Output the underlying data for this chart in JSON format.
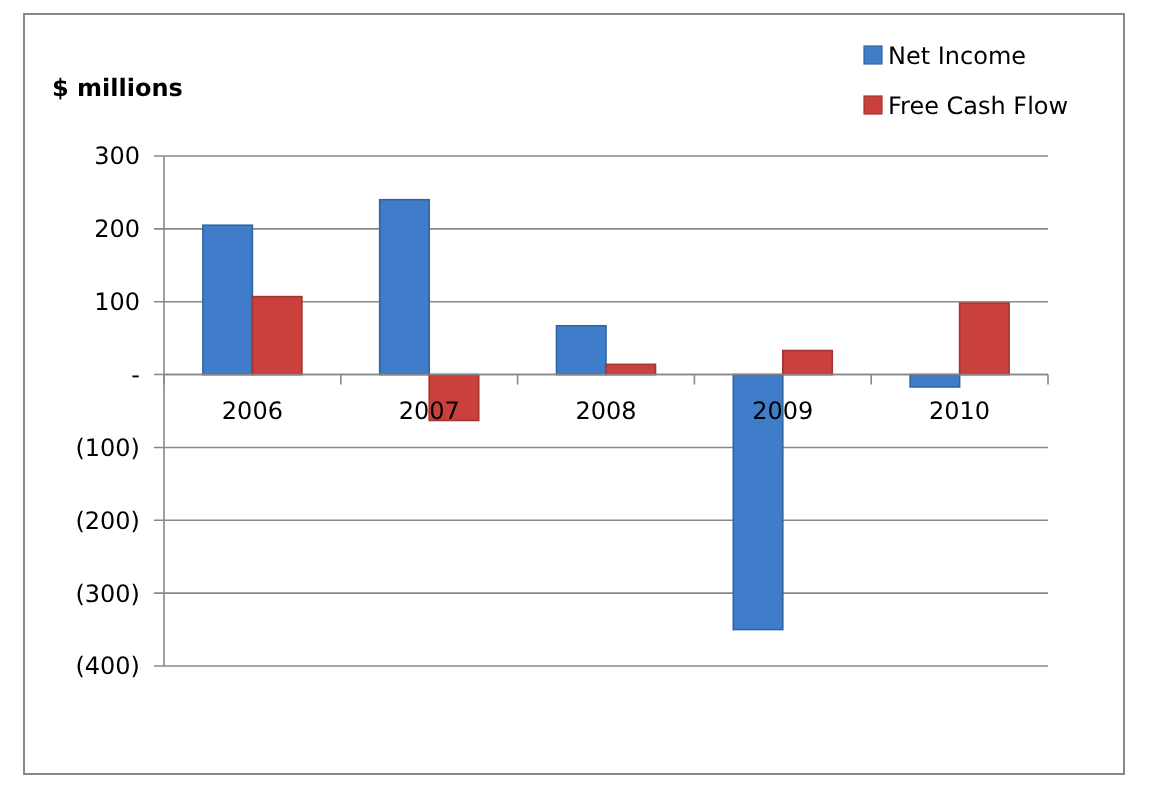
{
  "chart_data": {
    "type": "bar",
    "ylabel": "$ millions",
    "categories": [
      "2006",
      "2007",
      "2008",
      "2009",
      "2010"
    ],
    "series": [
      {
        "name": "Net Income",
        "color": "#3f7cc9",
        "values": [
          205,
          240,
          67,
          -350,
          -17
        ]
      },
      {
        "name": "Free Cash Flow",
        "color": "#c9403d",
        "values": [
          107,
          -63,
          14,
          33,
          98
        ]
      }
    ],
    "ylim": [
      -400,
      300
    ],
    "yticks": [
      {
        "value": -400,
        "label": "(400)"
      },
      {
        "value": -300,
        "label": "(300)"
      },
      {
        "value": -200,
        "label": "(200)"
      },
      {
        "value": -100,
        "label": "(100)"
      },
      {
        "value": 0,
        "label": "-"
      },
      100,
      200,
      300
    ],
    "grid": "y",
    "legend": "top right"
  }
}
